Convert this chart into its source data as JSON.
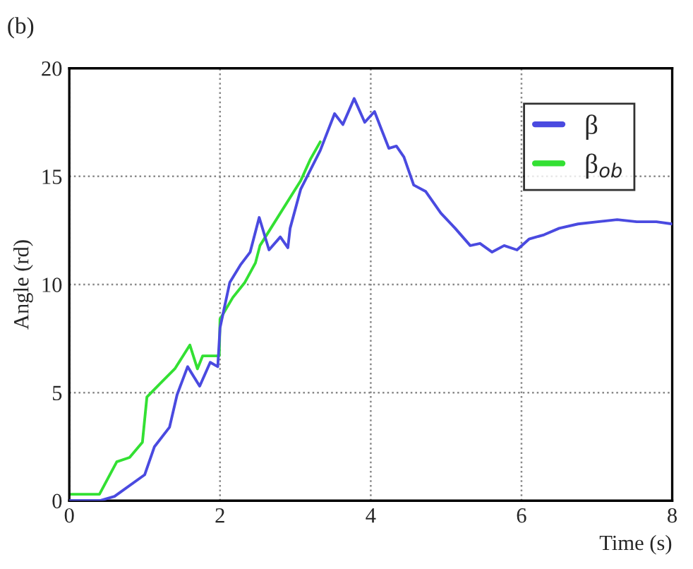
{
  "chart_data": {
    "type": "line",
    "xlabel": "Time (s)",
    "ylabel": "Angle (rd)",
    "annotations": [
      "(b)"
    ],
    "xlim": [
      0,
      8
    ],
    "ylim": [
      0,
      20
    ],
    "xticks": [
      0,
      2,
      4,
      6,
      8
    ],
    "yticks": [
      0,
      5,
      10,
      15,
      20
    ],
    "grid": true,
    "legend": "top right",
    "line_style": "solid",
    "marker": "none",
    "series": [
      {
        "name": "β",
        "color": "#4a4ae0",
        "x": [
          0,
          0.4,
          0.6,
          1.0,
          1.13,
          1.33,
          1.43,
          1.57,
          1.73,
          1.87,
          1.97,
          2.0,
          2.13,
          2.27,
          2.4,
          2.52,
          2.65,
          2.8,
          2.9,
          2.93,
          3.07,
          3.2,
          3.33,
          3.52,
          3.63,
          3.78,
          3.92,
          4.05,
          4.15,
          4.24,
          4.34,
          4.44,
          4.57,
          4.73,
          4.93,
          5.12,
          5.32,
          5.45,
          5.61,
          5.77,
          5.94,
          6.1,
          6.3,
          6.5,
          6.75,
          7.01,
          7.27,
          7.53,
          7.79,
          8.0
        ],
        "values": [
          0.0,
          0.0,
          0.2,
          1.2,
          2.5,
          3.4,
          4.9,
          6.2,
          5.3,
          6.4,
          6.2,
          8.0,
          10.1,
          10.9,
          11.5,
          13.1,
          11.6,
          12.2,
          11.7,
          12.6,
          14.4,
          15.3,
          16.2,
          17.9,
          17.4,
          18.6,
          17.5,
          18.0,
          17.1,
          16.3,
          16.4,
          15.9,
          14.6,
          14.3,
          13.3,
          12.6,
          11.8,
          11.9,
          11.5,
          11.8,
          11.6,
          12.1,
          12.3,
          12.6,
          12.8,
          12.9,
          13.0,
          12.9,
          12.9,
          12.8
        ]
      },
      {
        "name": "β$_{ob}$",
        "color": "#33e033",
        "x": [
          0,
          0.4,
          0.63,
          0.8,
          0.97,
          1.03,
          1.2,
          1.4,
          1.6,
          1.7,
          1.77,
          1.99,
          2.0,
          2.17,
          2.33,
          2.47,
          2.53,
          2.8,
          3.07,
          3.2,
          3.33
        ],
        "values": [
          0.3,
          0.3,
          1.8,
          2.0,
          2.7,
          4.8,
          5.4,
          6.1,
          7.2,
          6.1,
          6.7,
          6.7,
          8.4,
          9.4,
          10.1,
          11.0,
          11.8,
          null,
          14.8,
          15.8,
          16.6
        ]
      }
    ]
  }
}
